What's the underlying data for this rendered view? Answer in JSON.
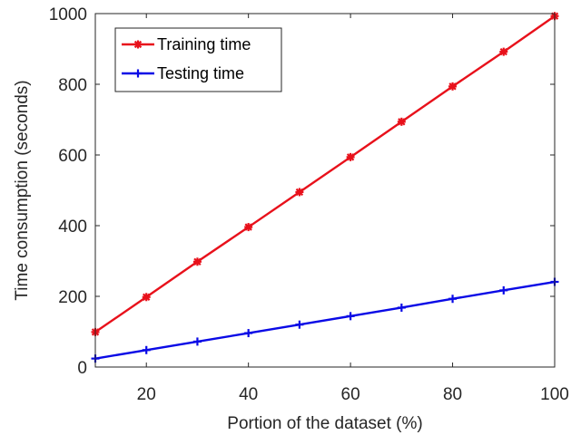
{
  "chart_data": {
    "type": "line",
    "title": "",
    "xlabel": "Portion of the dataset (%)",
    "ylabel": "Time consumption (seconds)",
    "xlim": [
      10,
      100
    ],
    "ylim": [
      0,
      1000
    ],
    "xticks": [
      20,
      40,
      60,
      80,
      100
    ],
    "yticks": [
      0,
      200,
      400,
      600,
      800,
      1000
    ],
    "grid": false,
    "legend_position": "top-left",
    "x": [
      10,
      20,
      30,
      40,
      50,
      60,
      70,
      80,
      90,
      100
    ],
    "series": [
      {
        "name": "Training time",
        "color": "#e8111b",
        "marker": "asterisk",
        "values": [
          99,
          198,
          298,
          396,
          495,
          594,
          694,
          794,
          892,
          993
        ]
      },
      {
        "name": "Testing time",
        "color": "#0a0ae6",
        "marker": "plus",
        "values": [
          24,
          48,
          72,
          96,
          120,
          144,
          168,
          193,
          217,
          241
        ]
      }
    ]
  }
}
